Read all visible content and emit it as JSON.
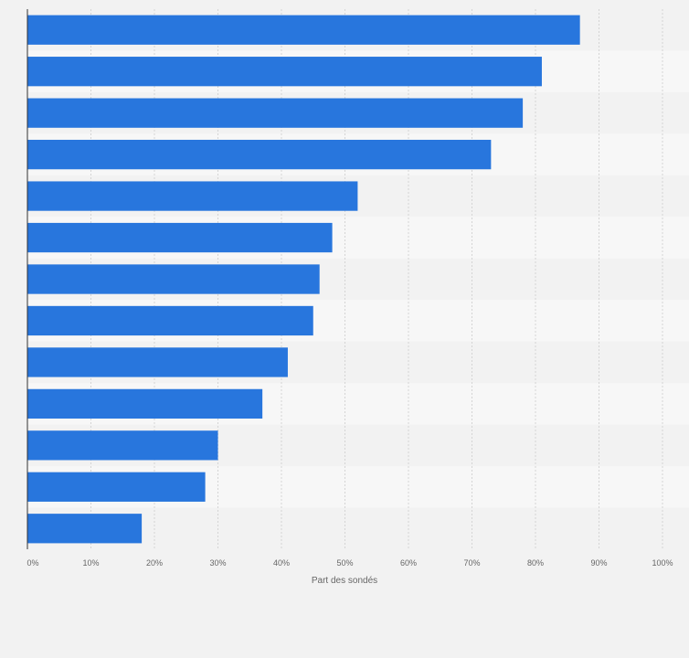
{
  "chart_data": {
    "type": "bar",
    "orientation": "horizontal",
    "title": "",
    "xlabel": "Part des sondés",
    "ylabel": "",
    "categories": [
      "",
      "",
      "",
      "",
      "",
      "",
      "",
      "",
      "",
      "",
      "",
      "",
      ""
    ],
    "values": [
      87,
      81,
      78,
      73,
      52,
      48,
      46,
      45,
      41,
      37,
      30,
      28,
      18
    ],
    "unit": "%",
    "xlim": [
      0,
      100
    ],
    "xticks": [
      "0%",
      "10%",
      "20%",
      "30%",
      "40%",
      "50%",
      "60%",
      "70%",
      "80%",
      "90%",
      "100%"
    ],
    "grid": true,
    "bar_color": "#2876dd"
  }
}
